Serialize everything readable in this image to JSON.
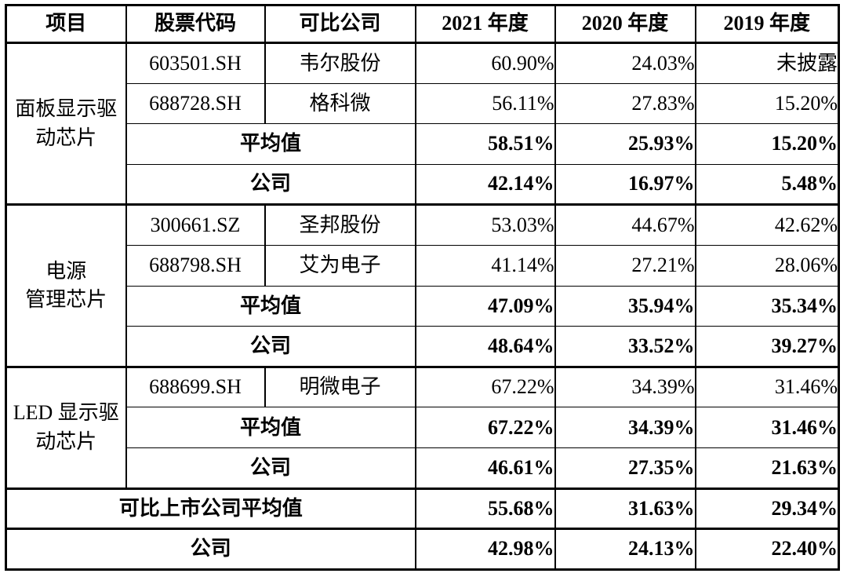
{
  "page": {
    "background": "#ffffff",
    "border_color": "#000000",
    "text_color": "#000000"
  },
  "table": {
    "columns": [
      "项目",
      "股票代码",
      "可比公司",
      "2021 年度",
      "2020 年度",
      "2019 年度"
    ],
    "groups": [
      {
        "item": "面板显示驱\n动芯片",
        "rows": [
          {
            "code": "603501.SH",
            "name": "韦尔股份",
            "values": [
              "60.90%",
              "24.03%",
              "未披露"
            ]
          },
          {
            "code": "688728.SH",
            "name": "格科微",
            "values": [
              "56.11%",
              "27.83%",
              "15.20%"
            ]
          }
        ],
        "average": {
          "label": "平均值",
          "values": [
            "58.51%",
            "25.93%",
            "15.20%"
          ]
        },
        "company": {
          "label": "公司",
          "values": [
            "42.14%",
            "16.97%",
            "5.48%"
          ]
        }
      },
      {
        "item": "电源\n管理芯片",
        "rows": [
          {
            "code": "300661.SZ",
            "name": "圣邦股份",
            "values": [
              "53.03%",
              "44.67%",
              "42.62%"
            ]
          },
          {
            "code": "688798.SH",
            "name": "艾为电子",
            "values": [
              "41.14%",
              "27.21%",
              "28.06%"
            ]
          }
        ],
        "average": {
          "label": "平均值",
          "values": [
            "47.09%",
            "35.94%",
            "35.34%"
          ]
        },
        "company": {
          "label": "公司",
          "values": [
            "48.64%",
            "33.52%",
            "39.27%"
          ]
        }
      },
      {
        "item": "LED 显示驱\n动芯片",
        "rows": [
          {
            "code": "688699.SH",
            "name": "明微电子",
            "values": [
              "67.22%",
              "34.39%",
              "31.46%"
            ]
          }
        ],
        "average": {
          "label": "平均值",
          "values": [
            "67.22%",
            "34.39%",
            "31.46%"
          ]
        },
        "company": {
          "label": "公司",
          "values": [
            "46.61%",
            "27.35%",
            "21.63%"
          ]
        }
      }
    ],
    "summary": [
      {
        "label": "可比上市公司平均值",
        "values": [
          "55.68%",
          "31.63%",
          "29.34%"
        ]
      },
      {
        "label": "公司",
        "values": [
          "42.98%",
          "24.13%",
          "22.40%"
        ]
      }
    ]
  }
}
